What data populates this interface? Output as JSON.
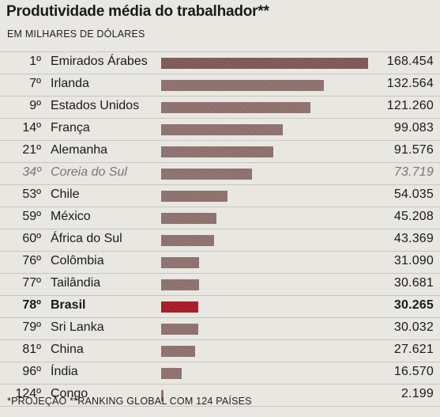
{
  "header": {
    "title": "Produtividade média do trabalhador**",
    "subtitle": "EM MILHARES DE DÓLARES"
  },
  "chart_data": {
    "type": "bar",
    "orientation": "horizontal",
    "title": "Produtividade média do trabalhador**",
    "subtitle": "EM MILHARES DE DÓLARES",
    "xlim": [
      0,
      168.454
    ],
    "grid": false,
    "legend": "none",
    "rows": [
      {
        "rank": "1º",
        "country": "Emirados Árabes",
        "value": 168.454,
        "value_label": "168.454"
      },
      {
        "rank": "7º",
        "country": "Irlanda",
        "value": 132.564,
        "value_label": "132.564"
      },
      {
        "rank": "9º",
        "country": "Estados Unidos",
        "value": 121.26,
        "value_label": "121.260"
      },
      {
        "rank": "14º",
        "country": "França",
        "value": 99.083,
        "value_label": "99.083"
      },
      {
        "rank": "21º",
        "country": "Alemanha",
        "value": 91.576,
        "value_label": "91.576"
      },
      {
        "rank": "34º",
        "country": "Coreia do Sul",
        "value": 73.719,
        "value_label": "73.719",
        "style": "muted"
      },
      {
        "rank": "53º",
        "country": "Chile",
        "value": 54.035,
        "value_label": "54.035"
      },
      {
        "rank": "59º",
        "country": "México",
        "value": 45.208,
        "value_label": "45.208"
      },
      {
        "rank": "60º",
        "country": "África do Sul",
        "value": 43.369,
        "value_label": "43.369"
      },
      {
        "rank": "76º",
        "country": "Colômbia",
        "value": 31.09,
        "value_label": "31.090"
      },
      {
        "rank": "77º",
        "country": "Tailândia",
        "value": 30.681,
        "value_label": "30.681"
      },
      {
        "rank": "78º",
        "country": "Brasil",
        "value": 30.265,
        "value_label": "30.265",
        "style": "highlight"
      },
      {
        "rank": "79º",
        "country": "Sri Lanka",
        "value": 30.032,
        "value_label": "30.032"
      },
      {
        "rank": "81º",
        "country": "China",
        "value": 27.621,
        "value_label": "27.621"
      },
      {
        "rank": "96º",
        "country": "Índia",
        "value": 16.57,
        "value_label": "16.570"
      },
      {
        "rank": "124º",
        "country": "Congo",
        "value": 2.199,
        "value_label": "2.199"
      }
    ],
    "colors": {
      "bar": "#8a6d6a",
      "top_bar": "#7a5552",
      "highlight_bar": "#a4161f"
    }
  },
  "footnote": "*PROJEÇÃO **RANKING GLOBAL COM 124 PAÍSES"
}
